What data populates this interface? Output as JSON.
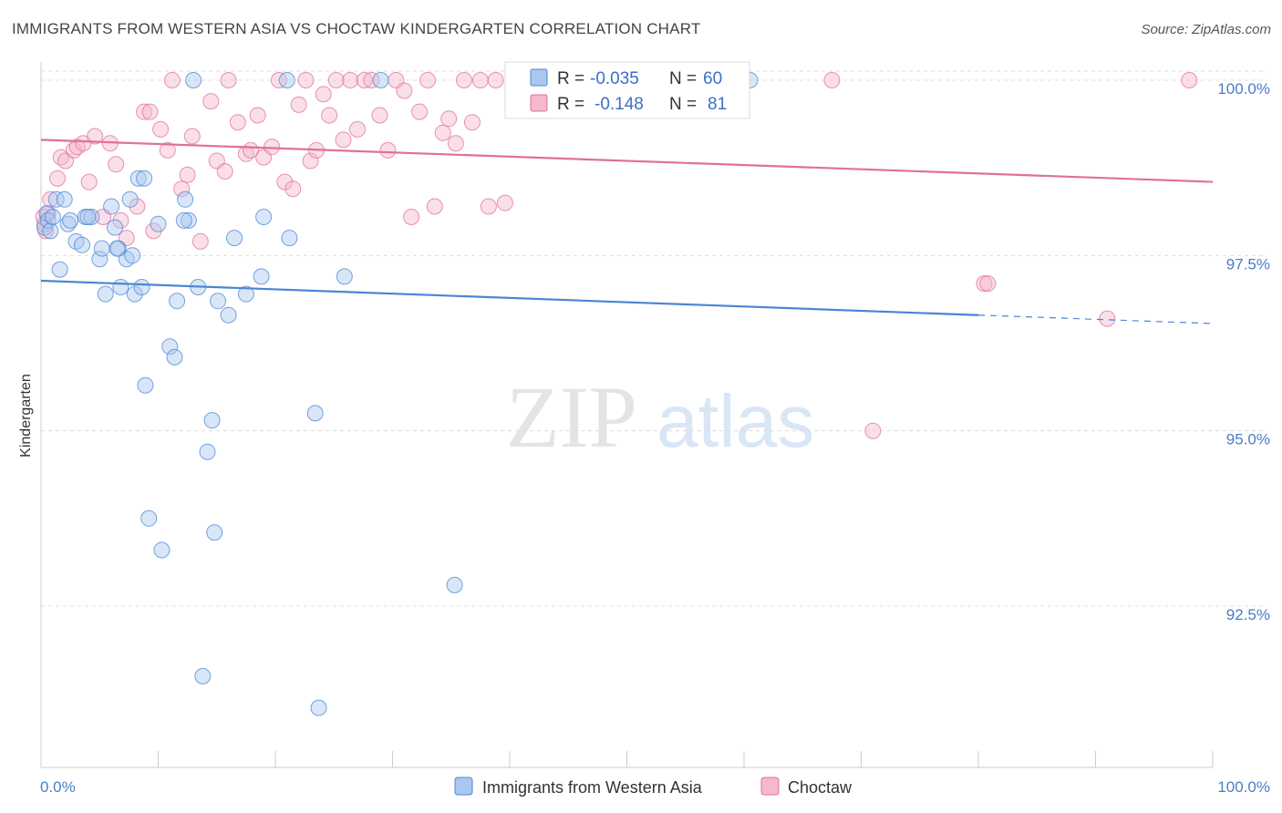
{
  "header": {
    "title": "IMMIGRANTS FROM WESTERN ASIA VS CHOCTAW KINDERGARTEN CORRELATION CHART",
    "source": "Source: ZipAtlas.com"
  },
  "watermark": {
    "zip": "ZIP",
    "atlas": "atlas"
  },
  "colors": {
    "blue": "#4a86d6",
    "blue_fill": "#aac8ef",
    "pink": "#e0709a",
    "pink_fill": "#f5b8cc",
    "tick_text": "#4a7cc7",
    "grid": "#dddddd"
  },
  "legend": {
    "rows": [
      {
        "r_label": "R =",
        "r_value": "-0.035",
        "n_label": "N =",
        "n_value": "60"
      },
      {
        "r_label": "R =",
        "r_value": "-0.148",
        "n_label": "N =",
        "n_value": "81"
      }
    ]
  },
  "chart_data": {
    "type": "scatter",
    "title": "IMMIGRANTS FROM WESTERN ASIA VS CHOCTAW KINDERGARTEN CORRELATION CHART",
    "ylabel": "Kindergarten",
    "xlim": [
      0,
      100
    ],
    "ylim": [
      90.0,
      100.5
    ],
    "x_tick_labels": [
      "0.0%",
      "100.0%"
    ],
    "y_ticks": [
      {
        "value": 100.0,
        "label": "100.0%"
      },
      {
        "value": 97.5,
        "label": "97.5%"
      },
      {
        "value": 95.0,
        "label": "95.0%"
      },
      {
        "value": 92.5,
        "label": "92.5%"
      }
    ],
    "series": [
      {
        "name": "Immigrants from Western Asia",
        "color": "#4a86d6",
        "r": -0.035,
        "n": 60,
        "trend": {
          "x0": 0,
          "y0": 97.14,
          "x1": 80,
          "y1": 96.65,
          "dash_to_x": 100,
          "dash_to_y": 96.53
        },
        "points": [
          [
            0.3,
            97.9
          ],
          [
            0.5,
            98.1
          ],
          [
            0.6,
            98.0
          ],
          [
            0.8,
            97.85
          ],
          [
            1.0,
            98.05
          ],
          [
            1.3,
            98.3
          ],
          [
            1.6,
            97.3
          ],
          [
            2.0,
            98.3
          ],
          [
            2.3,
            97.95
          ],
          [
            2.5,
            98.0
          ],
          [
            3.0,
            97.7
          ],
          [
            3.5,
            97.65
          ],
          [
            3.8,
            98.05
          ],
          [
            4.3,
            98.05
          ],
          [
            5.0,
            97.45
          ],
          [
            5.2,
            97.6
          ],
          [
            5.5,
            96.95
          ],
          [
            6.0,
            98.2
          ],
          [
            6.3,
            97.9
          ],
          [
            6.6,
            97.6
          ],
          [
            6.8,
            97.05
          ],
          [
            7.3,
            97.45
          ],
          [
            7.6,
            98.3
          ],
          [
            7.8,
            97.5
          ],
          [
            8.0,
            96.95
          ],
          [
            8.3,
            98.6
          ],
          [
            8.6,
            97.05
          ],
          [
            8.8,
            98.6
          ],
          [
            8.9,
            95.65
          ],
          [
            9.2,
            93.75
          ],
          [
            10.0,
            97.95
          ],
          [
            10.3,
            93.3
          ],
          [
            11.0,
            96.2
          ],
          [
            11.4,
            96.05
          ],
          [
            11.6,
            96.85
          ],
          [
            12.3,
            98.3
          ],
          [
            12.6,
            98.0
          ],
          [
            13.0,
            100.0
          ],
          [
            13.4,
            97.05
          ],
          [
            13.8,
            91.5
          ],
          [
            14.2,
            94.7
          ],
          [
            14.6,
            95.15
          ],
          [
            14.8,
            93.55
          ],
          [
            15.1,
            96.85
          ],
          [
            16.0,
            96.65
          ],
          [
            16.5,
            97.75
          ],
          [
            17.5,
            96.95
          ],
          [
            18.8,
            97.2
          ],
          [
            19.0,
            98.05
          ],
          [
            21.0,
            100.0
          ],
          [
            21.2,
            97.75
          ],
          [
            23.4,
            95.25
          ],
          [
            23.7,
            91.05
          ],
          [
            25.9,
            97.2
          ],
          [
            29.0,
            100.0
          ],
          [
            35.3,
            92.8
          ],
          [
            60.5,
            100.0
          ],
          [
            6.5,
            97.6
          ],
          [
            12.2,
            98.0
          ],
          [
            4.0,
            98.05
          ]
        ]
      },
      {
        "name": "Choctaw",
        "color": "#e0709a",
        "r": -0.148,
        "n": 81,
        "trend": {
          "x0": 0,
          "y0": 99.15,
          "x1": 100,
          "y1": 98.55
        },
        "points": [
          [
            0.2,
            98.05
          ],
          [
            0.4,
            97.85
          ],
          [
            0.6,
            98.1
          ],
          [
            0.8,
            98.3
          ],
          [
            1.4,
            98.6
          ],
          [
            1.7,
            98.9
          ],
          [
            2.1,
            98.85
          ],
          [
            2.8,
            99.0
          ],
          [
            3.1,
            99.05
          ],
          [
            3.6,
            99.1
          ],
          [
            4.1,
            98.55
          ],
          [
            4.6,
            99.2
          ],
          [
            5.3,
            98.05
          ],
          [
            5.9,
            99.1
          ],
          [
            6.4,
            98.8
          ],
          [
            6.8,
            98.0
          ],
          [
            7.3,
            97.75
          ],
          [
            8.2,
            98.2
          ],
          [
            8.8,
            99.55
          ],
          [
            9.3,
            99.55
          ],
          [
            9.6,
            97.85
          ],
          [
            10.2,
            99.3
          ],
          [
            10.8,
            99.0
          ],
          [
            11.2,
            100.0
          ],
          [
            12.0,
            98.45
          ],
          [
            12.5,
            98.65
          ],
          [
            12.9,
            99.2
          ],
          [
            13.6,
            97.7
          ],
          [
            14.5,
            99.7
          ],
          [
            15.0,
            98.85
          ],
          [
            15.7,
            98.7
          ],
          [
            16.0,
            100.0
          ],
          [
            16.8,
            99.4
          ],
          [
            17.5,
            98.95
          ],
          [
            17.9,
            99.0
          ],
          [
            18.5,
            99.5
          ],
          [
            19.0,
            98.9
          ],
          [
            19.7,
            99.05
          ],
          [
            20.3,
            100.0
          ],
          [
            20.8,
            98.55
          ],
          [
            21.5,
            98.45
          ],
          [
            22.0,
            99.65
          ],
          [
            23.0,
            98.85
          ],
          [
            23.5,
            99.0
          ],
          [
            24.1,
            99.8
          ],
          [
            24.6,
            99.5
          ],
          [
            25.2,
            100.0
          ],
          [
            25.8,
            99.15
          ],
          [
            26.4,
            100.0
          ],
          [
            27.0,
            99.3
          ],
          [
            27.6,
            100.0
          ],
          [
            28.2,
            100.0
          ],
          [
            28.9,
            99.5
          ],
          [
            29.6,
            99.0
          ],
          [
            30.3,
            100.0
          ],
          [
            31.0,
            99.85
          ],
          [
            31.6,
            98.05
          ],
          [
            32.3,
            99.55
          ],
          [
            33.0,
            100.0
          ],
          [
            33.6,
            98.2
          ],
          [
            34.3,
            99.25
          ],
          [
            34.8,
            99.45
          ],
          [
            35.4,
            99.1
          ],
          [
            36.1,
            100.0
          ],
          [
            36.8,
            99.4
          ],
          [
            37.5,
            100.0
          ],
          [
            38.2,
            98.2
          ],
          [
            38.8,
            100.0
          ],
          [
            39.6,
            98.25
          ],
          [
            40.5,
            100.0
          ],
          [
            41.2,
            100.0
          ],
          [
            44.0,
            100.0
          ],
          [
            46.5,
            100.0
          ],
          [
            71.0,
            95.0
          ],
          [
            80.5,
            97.1
          ],
          [
            80.8,
            97.1
          ],
          [
            91.0,
            96.6
          ],
          [
            98.0,
            100.0
          ],
          [
            67.5,
            100.0
          ],
          [
            0.3,
            97.95
          ],
          [
            22.6,
            100.0
          ]
        ]
      }
    ]
  },
  "bottom_legend": {
    "items": [
      {
        "label": "Immigrants from Western Asia"
      },
      {
        "label": "Choctaw"
      }
    ]
  }
}
